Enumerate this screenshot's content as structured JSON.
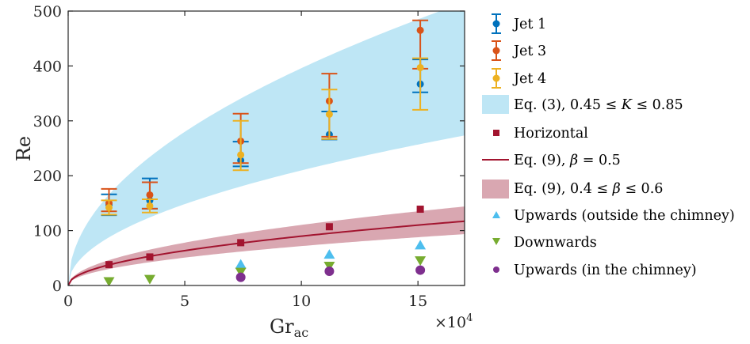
{
  "chart_data": {
    "type": "scatter",
    "xlabel": "Gr",
    "xlabel_sub": "ac",
    "ylabel": "Re",
    "xlim": [
      0,
      170000
    ],
    "ylim": [
      0,
      500
    ],
    "x_multiplier_label": "×10",
    "x_multiplier_exp": "4",
    "x_ticks": [
      0,
      50000,
      100000,
      150000
    ],
    "x_tick_labels": [
      "0",
      "5",
      "10",
      "15"
    ],
    "y_ticks": [
      0,
      100,
      200,
      300,
      400,
      500
    ],
    "y_tick_labels": [
      "0",
      "100",
      "200",
      "300",
      "400",
      "500"
    ],
    "grid": false,
    "legend_position": "outside-right",
    "colors": {
      "jet1": "#0072BD",
      "jet3": "#D95319",
      "jet4": "#EDB120",
      "eq3_band": "#BEE6F5",
      "horizontal": "#A2142F",
      "eq9_band": "#D9A7B1",
      "upwards_outside": "#4DBEEE",
      "downwards": "#77AC30",
      "upwards_chimney": "#7E2F8E"
    },
    "series": [
      {
        "name": "Jet 1",
        "style": "errorbar",
        "color": "#0072BD",
        "x": [
          17500,
          35000,
          74000,
          112000,
          151000
        ],
        "y": [
          147,
          155,
          228,
          275,
          367
        ],
        "err_low": [
          19,
          15,
          11,
          9,
          15
        ],
        "err_high": [
          19,
          40,
          34,
          42,
          45
        ]
      },
      {
        "name": "Jet 3",
        "style": "errorbar",
        "color": "#D95319",
        "x": [
          17500,
          35000,
          74000,
          112000,
          151000
        ],
        "y": [
          150,
          165,
          263,
          336,
          465
        ],
        "err_low": [
          15,
          25,
          40,
          65,
          70
        ],
        "err_high": [
          26,
          23,
          50,
          50,
          18
        ]
      },
      {
        "name": "Jet 4",
        "style": "errorbar",
        "color": "#EDB120",
        "x": [
          17500,
          35000,
          74000,
          112000,
          151000
        ],
        "y": [
          142,
          145,
          238,
          312,
          397
        ],
        "err_low": [
          13,
          12,
          28,
          45,
          77
        ],
        "err_high": [
          13,
          12,
          62,
          45,
          17
        ]
      },
      {
        "name": "Horizontal",
        "style": "square",
        "color": "#A2142F",
        "x": [
          17500,
          35000,
          74000,
          112000,
          151000
        ],
        "y": [
          38,
          52,
          78,
          107,
          139
        ]
      },
      {
        "name": "Upwards (outside the chimney)",
        "style": "triangle-up",
        "color": "#4DBEEE",
        "x": [
          74000,
          112000,
          151000
        ],
        "y": [
          38,
          56,
          73
        ]
      },
      {
        "name": "Downwards",
        "style": "triangle-down",
        "color": "#77AC30",
        "x": [
          17500,
          35000,
          74000,
          112000,
          151000
        ],
        "y": [
          8,
          12,
          25,
          36,
          46
        ]
      },
      {
        "name": "Upwards (in the chimney)",
        "style": "circle",
        "color": "#7E2F8E",
        "x": [
          74000,
          112000,
          151000
        ],
        "y": [
          15,
          26,
          28
        ]
      }
    ],
    "bands": [
      {
        "name": "Eq. (3), 0.45 ≤ K ≤ 0.85",
        "color": "#BEE6F5",
        "coef_low": 0.663,
        "coef_high": 1.252,
        "power": 0.5
      },
      {
        "name": "Eq. (9), 0.4 ≤ β ≤ 0.6",
        "color": "#D9A7B1",
        "coef_low": 0.227,
        "coef_high": 0.349,
        "power": 0.5
      }
    ],
    "curves": [
      {
        "name": "Eq. (9), β = 0.5",
        "color": "#A2142F",
        "coef": 0.284,
        "power": 0.5
      }
    ]
  },
  "legend": {
    "jet1": "Jet 1",
    "jet3": "Jet 3",
    "jet4": "Jet 4",
    "eq3_prefix": "Eq. (3), 0.45 ≤ ",
    "eq3_var": "K",
    "eq3_suffix": " ≤ 0.85",
    "horizontal": "Horizontal",
    "eq9_line_prefix": "Eq. (9), ",
    "eq9_line_var": "β",
    "eq9_line_suffix": " = 0.5",
    "eq9_band_prefix": "Eq. (9), 0.4 ≤ ",
    "eq9_band_var": "β",
    "eq9_band_suffix": " ≤ 0.6",
    "upwards_outside": "Upwards (outside the chimney)",
    "downwards": "Downwards",
    "upwards_chimney": "Upwards (in the chimney)"
  }
}
